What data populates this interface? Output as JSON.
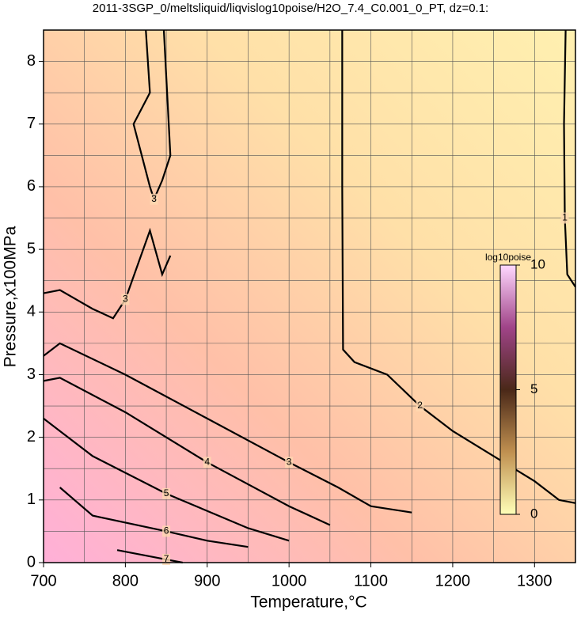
{
  "chart_data": {
    "type": "contour",
    "title": "2011-3SGP_0/meltsliquid/liqvislog10poise/H2O_7.4_C0.001_0_PT, dz=0.1:",
    "x_label": "Temperature,°C",
    "y_label": "Pressure,x100MPa",
    "xlim": [
      700,
      1350
    ],
    "ylim": [
      0,
      8.5
    ],
    "xticks": [
      700,
      800,
      900,
      1000,
      1100,
      1200,
      1300
    ],
    "yticks": [
      0,
      1,
      2,
      3,
      4,
      5,
      6,
      7,
      8
    ],
    "minor_xticks": [
      750,
      850,
      950,
      1050,
      1150,
      1250
    ],
    "minor_yticks": [
      0.5,
      1.5,
      2.5,
      3.5,
      4.5,
      5.5,
      6.5,
      7.5
    ],
    "grid": true,
    "contours": [
      {
        "level": 1,
        "x": [
          1338,
          1336,
          1337,
          1340,
          1350
        ],
        "y": [
          8.5,
          7.0,
          5.5,
          4.6,
          4.4
        ]
      },
      {
        "level": 2,
        "x": [
          1065,
          1065,
          1066,
          1080,
          1120,
          1160,
          1200,
          1250,
          1300,
          1330,
          1350
        ],
        "y": [
          8.5,
          6.0,
          3.4,
          3.2,
          3.0,
          2.5,
          2.1,
          1.7,
          1.3,
          1.0,
          0.95
        ]
      },
      {
        "level": 3,
        "x": [
          825,
          830,
          810,
          830,
          835,
          845,
          855,
          853,
          847
        ],
        "y": [
          8.5,
          7.5,
          7.0,
          6.0,
          5.8,
          6.1,
          6.5,
          7.0,
          8.5
        ]
      },
      {
        "level": 3,
        "x": [
          700,
          720,
          760,
          785,
          800,
          830,
          845,
          855
        ],
        "y": [
          4.3,
          4.35,
          4.05,
          3.9,
          4.2,
          5.3,
          4.6,
          4.9
        ]
      },
      {
        "level": 3,
        "x": [
          700,
          720,
          800,
          900,
          1000,
          1060,
          1100,
          1150
        ],
        "y": [
          3.3,
          3.5,
          3.0,
          2.3,
          1.6,
          1.2,
          0.9,
          0.8
        ]
      },
      {
        "level": 4,
        "x": [
          700,
          720,
          800,
          900,
          1000,
          1050
        ],
        "y": [
          2.9,
          2.95,
          2.4,
          1.6,
          0.9,
          0.6
        ]
      },
      {
        "level": 5,
        "x": [
          700,
          720,
          760,
          850,
          950,
          1000
        ],
        "y": [
          2.3,
          2.1,
          1.7,
          1.1,
          0.55,
          0.35
        ]
      },
      {
        "level": 6,
        "x": [
          720,
          760,
          850,
          900,
          950
        ],
        "y": [
          1.2,
          0.75,
          0.5,
          0.35,
          0.25
        ]
      },
      {
        "level": 7,
        "x": [
          790,
          850,
          870
        ],
        "y": [
          0.2,
          0.05,
          0
        ]
      }
    ],
    "colorbar": {
      "label": "log10poise",
      "lim": [
        0,
        10
      ],
      "ticks": [
        0,
        5,
        10
      ],
      "colors": [
        "#ffffb8",
        "#c09050",
        "#4a2818",
        "#a04488",
        "#ffd8ff"
      ]
    }
  }
}
